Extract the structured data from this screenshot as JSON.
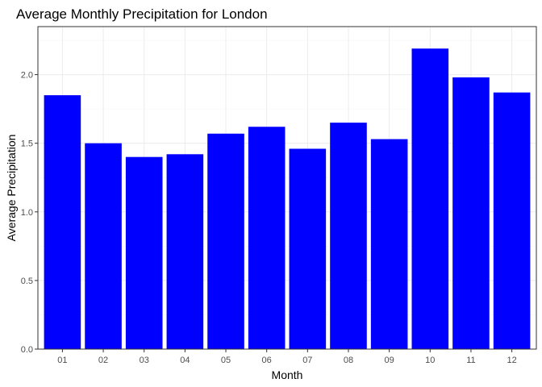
{
  "chart_data": {
    "type": "bar",
    "title": "Average Monthly Precipitation for London",
    "xlabel": "Month",
    "ylabel": "Average Precipitation",
    "categories": [
      "01",
      "02",
      "03",
      "04",
      "05",
      "06",
      "07",
      "08",
      "09",
      "10",
      "11",
      "12"
    ],
    "values": [
      1.85,
      1.5,
      1.4,
      1.42,
      1.57,
      1.62,
      1.46,
      1.65,
      1.53,
      2.19,
      1.98,
      1.87
    ],
    "ylim": [
      0,
      2.35
    ],
    "yticks": [
      0.0,
      0.5,
      1.0,
      1.5,
      2.0
    ],
    "ytick_labels": [
      "0.0",
      "0.5",
      "1.0",
      "1.5",
      "2.0"
    ],
    "bar_color": "#0000ff",
    "grid": true,
    "legend": false,
    "theme": "bw"
  }
}
